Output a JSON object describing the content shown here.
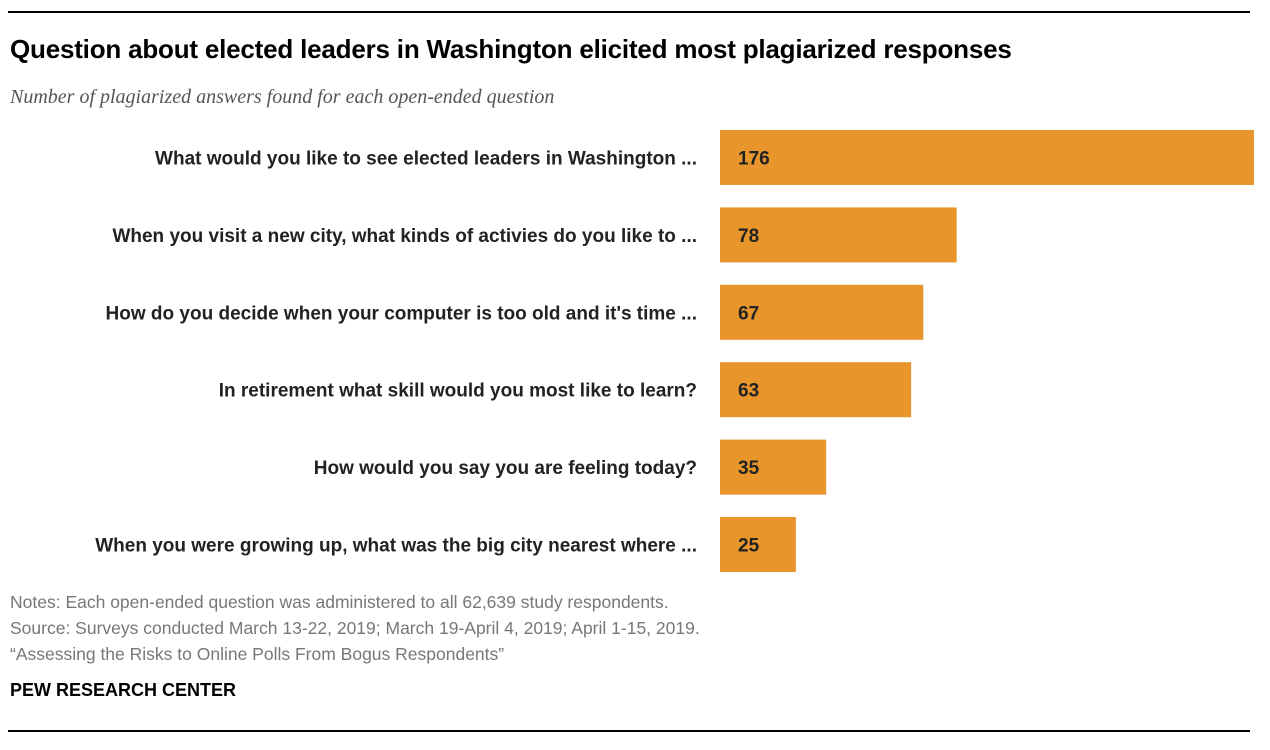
{
  "title": "Question about elected leaders in Washington elicited most plagiarized responses",
  "subtitle": "Number of plagiarized answers found for each open-ended question",
  "notes": [
    "Notes: Each open-ended question was administered to all 62,639 study respondents.",
    "Source: Surveys conducted March 13-22, 2019; March 19-April 4, 2019; April 1-15, 2019.",
    "“Assessing the Risks to Online Polls From Bogus Respondents”"
  ],
  "brand": "PEW RESEARCH CENTER",
  "chart_data": {
    "type": "bar",
    "orientation": "horizontal",
    "categories": [
      "What would you like to see elected leaders in Washington ...",
      "When you visit a new city, what kinds of activies do you like to ...",
      "How do you decide when your computer is too old and it's time ...",
      "In retirement what skill would you most like to learn?",
      "How would you say you are feeling today?",
      "When you were growing up, what was the big city nearest where ..."
    ],
    "values": [
      176,
      78,
      67,
      63,
      35,
      25
    ],
    "bar_color": "#E8952B",
    "xlim": [
      0,
      176
    ],
    "grid": false,
    "data_labels": true
  }
}
